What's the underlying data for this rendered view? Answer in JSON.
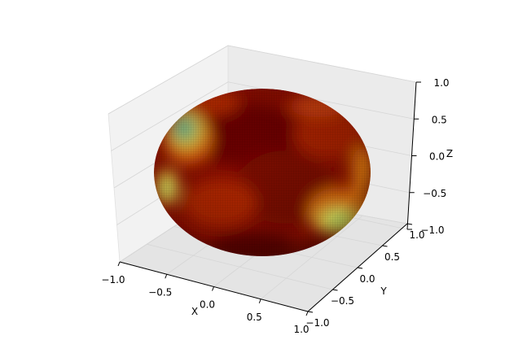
{
  "chart_data": {
    "type": "surface3d",
    "title": "",
    "xlabel": "X",
    "ylabel": "Y",
    "zlabel": "Z",
    "xlim": [
      -1.0,
      1.0
    ],
    "ylim": [
      -1.0,
      1.0
    ],
    "zlim": [
      -1.0,
      1.0
    ],
    "x_ticks": [
      "−1.0",
      "−0.5",
      "0.0",
      "0.5",
      "1.0"
    ],
    "y_ticks": [
      "−1.0",
      "−0.5",
      "0.0",
      "0.5",
      "1.0"
    ],
    "z_ticks": [
      "−1.0",
      "−0.5",
      "0.0",
      "0.5",
      "1.0"
    ],
    "grid": true,
    "surface": "sphere colored by a smooth scalar field",
    "colormap": [
      "#4a0000",
      "#8b0a00",
      "#c83200",
      "#f08a10",
      "#f7e03a",
      "#d8f56a",
      "#7fe0a0",
      "#2fa890"
    ],
    "pane_color": "#f0f0f0",
    "grid_color": "#dcdcdc"
  }
}
